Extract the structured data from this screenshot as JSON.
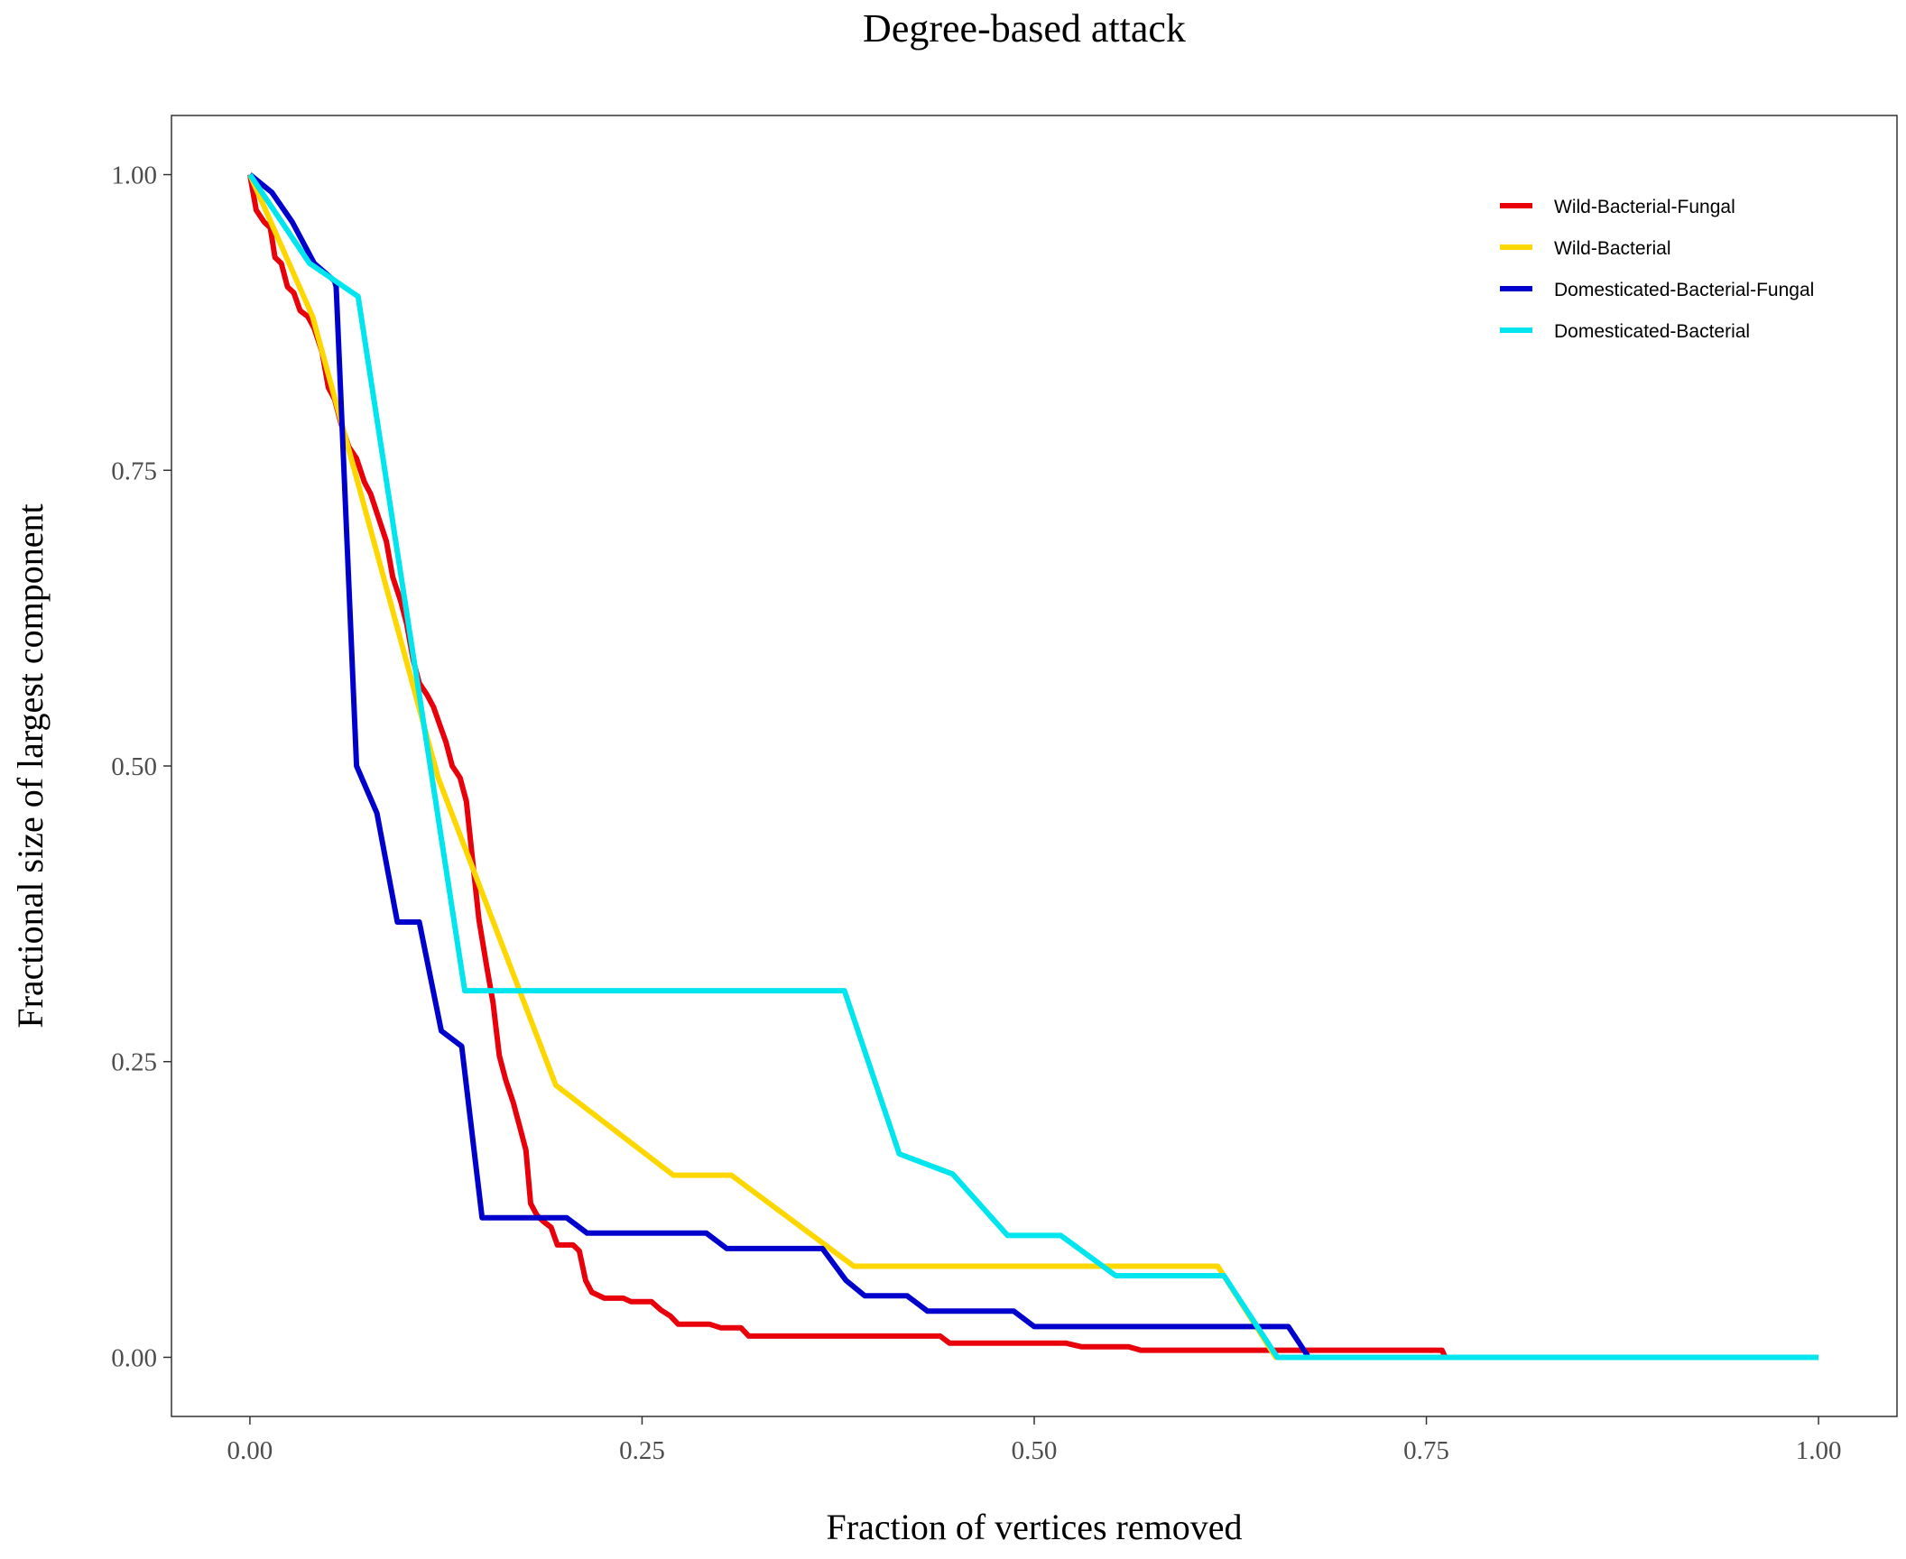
{
  "chart_data": {
    "type": "line",
    "title": "Degree-based attack",
    "xlabel": "Fraction of vertices removed",
    "ylabel": "Fractional size of largest component",
    "xlim": [
      -0.05,
      1.05
    ],
    "ylim": [
      -0.05,
      1.05
    ],
    "xticks": [
      0,
      0.25,
      0.5,
      0.75,
      1
    ],
    "xtick_labels": [
      "0.00",
      "0.25",
      "0.50",
      "0.75",
      "1.00"
    ],
    "yticks": [
      0,
      0.25,
      0.5,
      0.75,
      1
    ],
    "ytick_labels": [
      "0.00",
      "0.25",
      "0.50",
      "0.75",
      "1.00"
    ],
    "grid": false,
    "legend_position": "top-right",
    "series": [
      {
        "name": "Wild-Bacterial-Fungal",
        "color": "#E8000B",
        "points": [
          [
            0,
            1.0
          ],
          [
            0.004,
            0.97
          ],
          [
            0.009,
            0.96
          ],
          [
            0.013,
            0.955
          ],
          [
            0.016,
            0.93
          ],
          [
            0.02,
            0.925
          ],
          [
            0.024,
            0.905
          ],
          [
            0.028,
            0.9
          ],
          [
            0.032,
            0.885
          ],
          [
            0.037,
            0.88
          ],
          [
            0.041,
            0.87
          ],
          [
            0.046,
            0.85
          ],
          [
            0.05,
            0.82
          ],
          [
            0.054,
            0.81
          ],
          [
            0.058,
            0.79
          ],
          [
            0.063,
            0.77
          ],
          [
            0.068,
            0.76
          ],
          [
            0.073,
            0.74
          ],
          [
            0.077,
            0.73
          ],
          [
            0.082,
            0.71
          ],
          [
            0.087,
            0.69
          ],
          [
            0.091,
            0.66
          ],
          [
            0.096,
            0.64
          ],
          [
            0.1,
            0.62
          ],
          [
            0.104,
            0.59
          ],
          [
            0.108,
            0.57
          ],
          [
            0.113,
            0.56
          ],
          [
            0.117,
            0.55
          ],
          [
            0.121,
            0.535
          ],
          [
            0.125,
            0.52
          ],
          [
            0.129,
            0.5
          ],
          [
            0.134,
            0.49
          ],
          [
            0.138,
            0.47
          ],
          [
            0.142,
            0.42
          ],
          [
            0.146,
            0.37
          ],
          [
            0.151,
            0.33
          ],
          [
            0.155,
            0.3
          ],
          [
            0.159,
            0.255
          ],
          [
            0.163,
            0.235
          ],
          [
            0.168,
            0.215
          ],
          [
            0.172,
            0.195
          ],
          [
            0.176,
            0.175
          ],
          [
            0.179,
            0.13
          ],
          [
            0.183,
            0.12
          ],
          [
            0.187,
            0.115
          ],
          [
            0.192,
            0.11
          ],
          [
            0.196,
            0.095
          ],
          [
            0.2,
            0.095
          ],
          [
            0.206,
            0.095
          ],
          [
            0.21,
            0.09
          ],
          [
            0.214,
            0.065
          ],
          [
            0.218,
            0.055
          ],
          [
            0.226,
            0.05
          ],
          [
            0.238,
            0.05
          ],
          [
            0.243,
            0.047
          ],
          [
            0.256,
            0.047
          ],
          [
            0.262,
            0.04
          ],
          [
            0.268,
            0.035
          ],
          [
            0.273,
            0.028
          ],
          [
            0.293,
            0.028
          ],
          [
            0.3,
            0.025
          ],
          [
            0.313,
            0.025
          ],
          [
            0.318,
            0.018
          ],
          [
            0.44,
            0.018
          ],
          [
            0.446,
            0.012
          ],
          [
            0.52,
            0.012
          ],
          [
            0.53,
            0.009
          ],
          [
            0.56,
            0.009
          ],
          [
            0.568,
            0.006
          ],
          [
            0.76,
            0.006
          ],
          [
            0.762,
            0.0
          ]
        ]
      },
      {
        "name": "Wild-Bacterial",
        "color": "#FFD700",
        "points": [
          [
            0,
            1.0
          ],
          [
            0.04,
            0.88
          ],
          [
            0.12,
            0.49
          ],
          [
            0.195,
            0.23
          ],
          [
            0.27,
            0.154
          ],
          [
            0.307,
            0.154
          ],
          [
            0.385,
            0.077
          ],
          [
            0.617,
            0.077
          ],
          [
            0.654,
            0.0
          ],
          [
            1.0,
            0.0
          ]
        ]
      },
      {
        "name": "Domesticated-Bacterial-Fungal",
        "color": "#0000CD",
        "points": [
          [
            0,
            1.0
          ],
          [
            0.014,
            0.985
          ],
          [
            0.027,
            0.96
          ],
          [
            0.041,
            0.925
          ],
          [
            0.054,
            0.91
          ],
          [
            0.055,
            0.905
          ],
          [
            0.068,
            0.5
          ],
          [
            0.081,
            0.46
          ],
          [
            0.094,
            0.368
          ],
          [
            0.108,
            0.368
          ],
          [
            0.122,
            0.276
          ],
          [
            0.135,
            0.263
          ],
          [
            0.148,
            0.118
          ],
          [
            0.202,
            0.118
          ],
          [
            0.215,
            0.105
          ],
          [
            0.291,
            0.105
          ],
          [
            0.304,
            0.092
          ],
          [
            0.365,
            0.092
          ],
          [
            0.38,
            0.065
          ],
          [
            0.392,
            0.052
          ],
          [
            0.419,
            0.052
          ],
          [
            0.432,
            0.039
          ],
          [
            0.487,
            0.039
          ],
          [
            0.5,
            0.026
          ],
          [
            0.662,
            0.026
          ],
          [
            0.675,
            0.0
          ]
        ]
      },
      {
        "name": "Domesticated-Bacterial",
        "color": "#00E5EE",
        "points": [
          [
            0,
            1.0
          ],
          [
            0.038,
            0.925
          ],
          [
            0.069,
            0.897
          ],
          [
            0.137,
            0.31
          ],
          [
            0.379,
            0.31
          ],
          [
            0.414,
            0.172
          ],
          [
            0.448,
            0.155
          ],
          [
            0.483,
            0.103
          ],
          [
            0.517,
            0.103
          ],
          [
            0.552,
            0.069
          ],
          [
            0.621,
            0.069
          ],
          [
            0.655,
            0.0
          ],
          [
            1.0,
            0.0
          ]
        ]
      }
    ]
  }
}
